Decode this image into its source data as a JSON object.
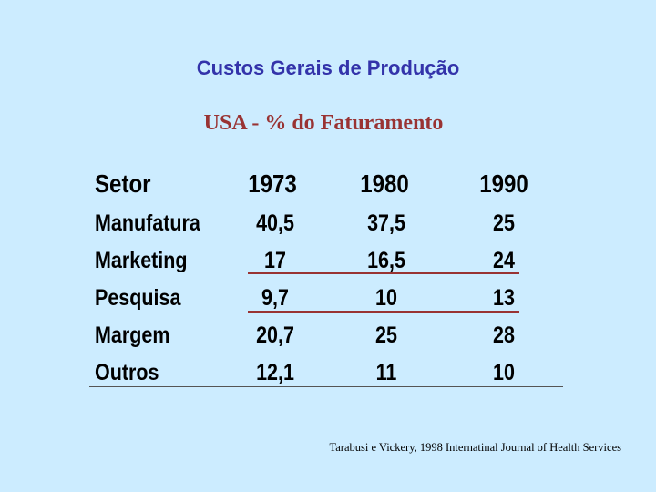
{
  "title": "Custos Gerais de Produção",
  "subtitle": "USA - % do Faturamento",
  "table": {
    "headers": [
      "Setor",
      "1973",
      "1980",
      "1990"
    ],
    "rows": [
      {
        "setor": "Manufatura",
        "v1973": "40,5",
        "v1980": "37,5",
        "v1990": "25"
      },
      {
        "setor": "Marketing",
        "v1973": "17",
        "v1980": "16,5",
        "v1990": "24"
      },
      {
        "setor": "Pesquisa",
        "v1973": "9,7",
        "v1980": "10",
        "v1990": "13"
      },
      {
        "setor": "Margem",
        "v1973": "20,7",
        "v1980": "25",
        "v1990": "28"
      },
      {
        "setor": "Outros",
        "v1973": "12,1",
        "v1980": "11",
        "v1990": "10"
      }
    ]
  },
  "source": "Tarabusi e Vickery, 1998 Internatinal Journal of Health Services",
  "colors": {
    "background": "#CCECFF",
    "title": "#3333AA",
    "subtitle": "#993333",
    "highlight_line": "#993333"
  }
}
